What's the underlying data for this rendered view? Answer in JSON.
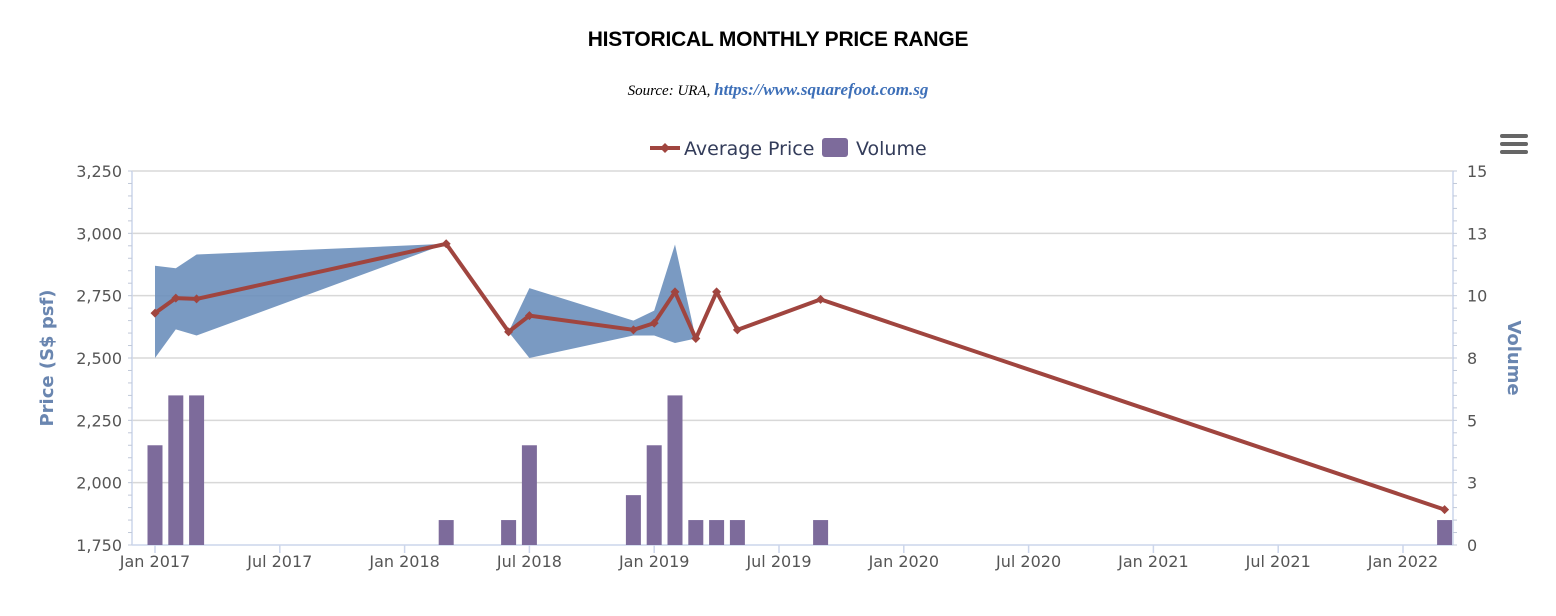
{
  "chart_data": {
    "type": "line",
    "title": "HISTORICAL MONTHLY PRICE RANGE",
    "subtitle_source": "Source: URA,",
    "subtitle_link": "https://www.squarefoot.com.sg",
    "legend": [
      "Average Price",
      "Volume"
    ],
    "x_tick_labels": [
      "Jan 2017",
      "Jul 2017",
      "Jan 2018",
      "Jul 2018",
      "Jan 2019",
      "Jul 2019",
      "Jan 2020",
      "Jul 2020",
      "Jan 2021",
      "Jul 2021",
      "Jan 2022"
    ],
    "y_left": {
      "label": "Price (S$ psf)",
      "ticks": [
        "1,750",
        "2,000",
        "2,250",
        "2,500",
        "2,750",
        "3,000",
        "3,250"
      ],
      "ylim": [
        1750,
        3250
      ]
    },
    "y_right": {
      "label": "Volume",
      "ticks": [
        "0",
        "3",
        "5",
        "8",
        "10",
        "13",
        "15"
      ],
      "ylim": [
        0,
        15
      ]
    },
    "series": [
      {
        "name": "Average Price",
        "type": "line",
        "color": "#a0453f",
        "points": [
          {
            "x": "2017-01",
            "y": 2680
          },
          {
            "x": "2017-02",
            "y": 2740
          },
          {
            "x": "2017-03",
            "y": 2737
          },
          {
            "x": "2018-03",
            "y": 2958
          },
          {
            "x": "2018-06",
            "y": 2605
          },
          {
            "x": "2018-07",
            "y": 2670
          },
          {
            "x": "2018-12",
            "y": 2613
          },
          {
            "x": "2019-01",
            "y": 2640
          },
          {
            "x": "2019-02",
            "y": 2765
          },
          {
            "x": "2019-03",
            "y": 2578
          },
          {
            "x": "2019-04",
            "y": 2765
          },
          {
            "x": "2019-05",
            "y": 2613
          },
          {
            "x": "2019-09",
            "y": 2735
          },
          {
            "x": "2022-03",
            "y": 1892
          }
        ]
      },
      {
        "name": "Price Range",
        "type": "arearange",
        "color": "#6b8fbb",
        "segments": [
          [
            {
              "x": "2017-01",
              "low": 2500,
              "high": 2870
            },
            {
              "x": "2017-02",
              "low": 2615,
              "high": 2860
            },
            {
              "x": "2017-03",
              "low": 2590,
              "high": 2915
            },
            {
              "x": "2018-03",
              "low": 2958,
              "high": 2958
            }
          ],
          [
            {
              "x": "2018-06",
              "low": 2605,
              "high": 2605
            },
            {
              "x": "2018-07",
              "low": 2500,
              "high": 2780
            },
            {
              "x": "2018-12",
              "low": 2590,
              "high": 2650
            },
            {
              "x": "2019-01",
              "low": 2590,
              "high": 2690
            },
            {
              "x": "2019-02",
              "low": 2560,
              "high": 2955
            },
            {
              "x": "2019-03",
              "low": 2578,
              "high": 2578
            }
          ]
        ]
      },
      {
        "name": "Volume",
        "type": "bar",
        "axis": "right",
        "color": "#7d6b9b",
        "points": [
          {
            "x": "2017-01",
            "y": 4
          },
          {
            "x": "2017-02",
            "y": 6
          },
          {
            "x": "2017-03",
            "y": 6
          },
          {
            "x": "2018-03",
            "y": 1
          },
          {
            "x": "2018-06",
            "y": 1
          },
          {
            "x": "2018-07",
            "y": 4
          },
          {
            "x": "2018-12",
            "y": 2
          },
          {
            "x": "2019-01",
            "y": 4
          },
          {
            "x": "2019-02",
            "y": 6
          },
          {
            "x": "2019-03",
            "y": 1
          },
          {
            "x": "2019-04",
            "y": 1
          },
          {
            "x": "2019-05",
            "y": 1
          },
          {
            "x": "2019-09",
            "y": 1
          },
          {
            "x": "2022-03",
            "y": 1
          }
        ]
      }
    ]
  }
}
